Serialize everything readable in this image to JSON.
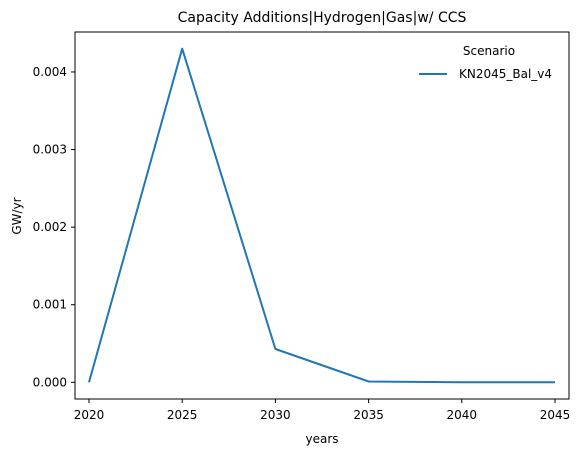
{
  "chart_data": {
    "type": "line",
    "title": "Capacity Additions|Hydrogen|Gas|w/ CCS",
    "xlabel": "years",
    "ylabel": "GW/yr",
    "x": [
      2020,
      2025,
      2030,
      2035,
      2040,
      2045
    ],
    "xticks": [
      "2020",
      "2025",
      "2030",
      "2035",
      "2040",
      "2045"
    ],
    "yticks": [
      "0.000",
      "0.001",
      "0.002",
      "0.003",
      "0.004"
    ],
    "ylim": [
      -0.000215,
      0.004515
    ],
    "xlim": [
      2019.25,
      2045.75
    ],
    "grid": false,
    "legend": {
      "title": "Scenario",
      "placement": "top-right"
    },
    "series": [
      {
        "name": "KN2045_Bal_v4",
        "color": "#1f77b4",
        "values": [
          0.0,
          0.0043,
          0.00043,
          1e-05,
          0.0,
          0.0
        ]
      }
    ]
  }
}
